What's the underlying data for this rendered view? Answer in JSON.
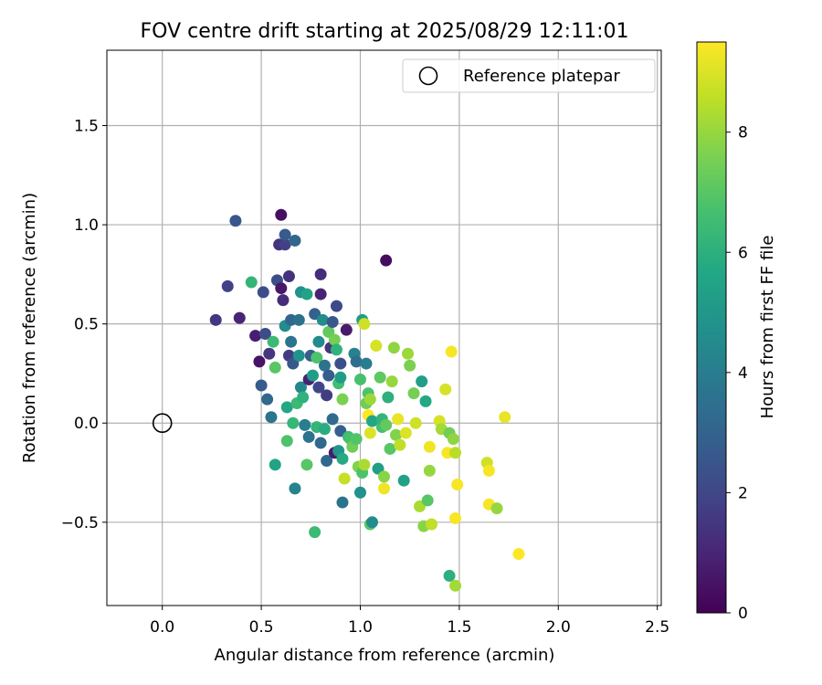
{
  "chart_data": {
    "type": "scatter",
    "title": "FOV centre drift starting at 2025/08/29 12:11:01",
    "xlabel": "Angular distance from reference (arcmin)",
    "ylabel": "Rotation from reference (arcmin)",
    "xlim": [
      -0.28,
      2.52
    ],
    "ylim": [
      -0.92,
      1.88
    ],
    "xticks": [
      0.0,
      0.5,
      1.0,
      1.5,
      2.0,
      2.5
    ],
    "xtick_labels": [
      "0.0",
      "0.5",
      "1.0",
      "1.5",
      "2.0",
      "2.5"
    ],
    "yticks": [
      -0.5,
      0.0,
      0.5,
      1.0,
      1.5
    ],
    "ytick_labels": [
      "−0.5",
      "0.0",
      "0.5",
      "1.0",
      "1.5"
    ],
    "grid": true,
    "legend": {
      "position": "top-right",
      "label": "Reference platepar"
    },
    "reference_point": {
      "x": 0.0,
      "y": 0.0
    },
    "colorbar": {
      "label": "Hours from first FF file",
      "min": 0,
      "max": 9.5,
      "ticks": [
        0,
        2,
        4,
        6,
        8
      ],
      "tick_labels": [
        "0",
        "2",
        "4",
        "6",
        "8"
      ],
      "colormap": "viridis"
    },
    "points": [
      [
        0.27,
        0.52,
        1.5
      ],
      [
        0.33,
        0.69,
        1.8
      ],
      [
        0.37,
        1.02,
        2.6
      ],
      [
        0.39,
        0.53,
        1.0
      ],
      [
        0.45,
        0.71,
        6.2
      ],
      [
        0.47,
        0.44,
        0.8
      ],
      [
        0.49,
        0.31,
        0.5
      ],
      [
        0.5,
        0.19,
        2.7
      ],
      [
        0.51,
        0.66,
        2.2
      ],
      [
        0.52,
        0.45,
        2.2
      ],
      [
        0.53,
        0.12,
        3.2
      ],
      [
        0.54,
        0.35,
        1.5
      ],
      [
        0.55,
        0.03,
        3.6
      ],
      [
        0.56,
        0.41,
        6.4
      ],
      [
        0.57,
        0.28,
        7.0
      ],
      [
        0.58,
        0.72,
        2.3
      ],
      [
        0.57,
        -0.21,
        5.5
      ],
      [
        0.59,
        0.9,
        1.4
      ],
      [
        0.6,
        1.05,
        0.4
      ],
      [
        0.6,
        0.68,
        0.6
      ],
      [
        0.61,
        0.62,
        1.2
      ],
      [
        0.62,
        0.49,
        4.6
      ],
      [
        0.62,
        0.9,
        1.8
      ],
      [
        0.62,
        0.95,
        2.7
      ],
      [
        0.63,
        0.08,
        5.6
      ],
      [
        0.63,
        -0.09,
        6.8
      ],
      [
        0.64,
        0.34,
        1.7
      ],
      [
        0.64,
        0.74,
        1.4
      ],
      [
        0.65,
        0.41,
        3.6
      ],
      [
        0.65,
        0.52,
        3.1
      ],
      [
        0.66,
        0.3,
        2.6
      ],
      [
        0.66,
        0.0,
        6.3
      ],
      [
        0.67,
        -0.33,
        4.2
      ],
      [
        0.67,
        0.92,
        3.1
      ],
      [
        0.68,
        0.1,
        6.4
      ],
      [
        0.69,
        0.34,
        4.8
      ],
      [
        0.69,
        0.52,
        3.5
      ],
      [
        0.7,
        0.18,
        4.4
      ],
      [
        0.7,
        0.66,
        4.8
      ],
      [
        0.71,
        0.13,
        6.1
      ],
      [
        0.72,
        -0.01,
        4.0
      ],
      [
        0.73,
        0.65,
        5.5
      ],
      [
        0.73,
        -0.21,
        7.0
      ],
      [
        0.74,
        0.22,
        0.9
      ],
      [
        0.74,
        -0.07,
        3.6
      ],
      [
        0.75,
        0.34,
        2.8
      ],
      [
        0.76,
        0.24,
        5.2
      ],
      [
        0.77,
        0.55,
        3.0
      ],
      [
        0.77,
        -0.55,
        6.4
      ],
      [
        0.78,
        0.33,
        6.8
      ],
      [
        0.78,
        -0.02,
        6.2
      ],
      [
        0.79,
        0.18,
        2.0
      ],
      [
        0.79,
        0.41,
        4.5
      ],
      [
        0.8,
        0.75,
        1.2
      ],
      [
        0.8,
        0.65,
        0.9
      ],
      [
        0.8,
        -0.1,
        3.2
      ],
      [
        0.81,
        0.52,
        4.6
      ],
      [
        0.82,
        0.29,
        3.6
      ],
      [
        0.82,
        -0.03,
        5.9
      ],
      [
        0.83,
        0.14,
        1.7
      ],
      [
        0.83,
        -0.19,
        3.2
      ],
      [
        0.84,
        0.24,
        2.8
      ],
      [
        0.84,
        0.46,
        7.2
      ],
      [
        0.85,
        0.38,
        1.5
      ],
      [
        0.86,
        0.51,
        2.6
      ],
      [
        0.86,
        0.02,
        3.3
      ],
      [
        0.87,
        0.42,
        7.5
      ],
      [
        0.87,
        -0.15,
        0.7
      ],
      [
        0.88,
        0.59,
        2.1
      ],
      [
        0.88,
        0.37,
        6.1
      ],
      [
        0.89,
        0.2,
        6.6
      ],
      [
        0.89,
        -0.14,
        4.9
      ],
      [
        0.9,
        0.3,
        2.3
      ],
      [
        0.9,
        0.23,
        5.2
      ],
      [
        0.9,
        -0.04,
        2.9
      ],
      [
        0.91,
        -0.4,
        3.6
      ],
      [
        0.91,
        0.12,
        7.6
      ],
      [
        0.91,
        -0.18,
        5.8
      ],
      [
        0.92,
        -0.28,
        8.7
      ],
      [
        0.93,
        0.47,
        0.7
      ],
      [
        0.94,
        -0.07,
        6.5
      ],
      [
        0.95,
        -0.08,
        6.7
      ],
      [
        0.96,
        -0.12,
        7.4
      ],
      [
        0.97,
        0.35,
        4.2
      ],
      [
        0.98,
        -0.08,
        6.9
      ],
      [
        0.98,
        0.31,
        3.4
      ],
      [
        0.99,
        -0.22,
        7.7
      ],
      [
        1.0,
        0.22,
        6.7
      ],
      [
        1.0,
        -0.35,
        4.8
      ],
      [
        1.01,
        0.52,
        5.2
      ],
      [
        1.01,
        -0.25,
        6.8
      ],
      [
        1.02,
        0.5,
        8.8
      ],
      [
        1.02,
        -0.21,
        8.3
      ],
      [
        1.03,
        0.3,
        4.0
      ],
      [
        1.03,
        0.1,
        7.4
      ],
      [
        1.04,
        0.04,
        9.5
      ],
      [
        1.04,
        0.15,
        6.8
      ],
      [
        1.05,
        0.12,
        8.1
      ],
      [
        1.05,
        -0.05,
        9.0
      ],
      [
        1.05,
        -0.51,
        7.0
      ],
      [
        1.06,
        -0.5,
        4.6
      ],
      [
        1.06,
        0.01,
        5.6
      ],
      [
        1.08,
        0.39,
        8.9
      ],
      [
        1.09,
        -0.23,
        5.3
      ],
      [
        1.1,
        0.23,
        7.1
      ],
      [
        1.11,
        -0.02,
        6.6
      ],
      [
        1.11,
        0.02,
        6.2
      ],
      [
        1.12,
        -0.27,
        7.8
      ],
      [
        1.12,
        -0.33,
        9.3
      ],
      [
        1.13,
        -0.01,
        7.2
      ],
      [
        1.13,
        0.82,
        0.3
      ],
      [
        1.14,
        0.13,
        6.0
      ],
      [
        1.15,
        -0.13,
        7.0
      ],
      [
        1.16,
        0.21,
        8.0
      ],
      [
        1.17,
        0.38,
        7.9
      ],
      [
        1.18,
        -0.06,
        7.7
      ],
      [
        1.19,
        0.02,
        9.2
      ],
      [
        1.2,
        -0.11,
        8.6
      ],
      [
        1.22,
        -0.29,
        5.4
      ],
      [
        1.23,
        -0.05,
        9.0
      ],
      [
        1.24,
        0.35,
        8.1
      ],
      [
        1.25,
        0.29,
        7.6
      ],
      [
        1.27,
        0.15,
        7.5
      ],
      [
        1.28,
        0.0,
        8.8
      ],
      [
        1.3,
        -0.42,
        8.3
      ],
      [
        1.31,
        0.21,
        5.3
      ],
      [
        1.32,
        -0.52,
        7.8
      ],
      [
        1.33,
        0.11,
        5.7
      ],
      [
        1.34,
        -0.39,
        7.0
      ],
      [
        1.35,
        -0.12,
        9.3
      ],
      [
        1.35,
        -0.24,
        8.0
      ],
      [
        1.36,
        -0.51,
        8.6
      ],
      [
        1.4,
        0.01,
        8.9
      ],
      [
        1.41,
        -0.03,
        8.2
      ],
      [
        1.43,
        0.17,
        8.9
      ],
      [
        1.44,
        -0.15,
        9.4
      ],
      [
        1.45,
        -0.77,
        6.0
      ],
      [
        1.45,
        -0.05,
        7.4
      ],
      [
        1.46,
        0.36,
        9.4
      ],
      [
        1.47,
        -0.08,
        7.9
      ],
      [
        1.48,
        -0.82,
        8.2
      ],
      [
        1.48,
        -0.15,
        8.5
      ],
      [
        1.48,
        -0.48,
        9.4
      ],
      [
        1.49,
        -0.31,
        9.4
      ],
      [
        1.64,
        -0.2,
        8.8
      ],
      [
        1.65,
        -0.24,
        9.4
      ],
      [
        1.65,
        -0.41,
        9.4
      ],
      [
        1.69,
        -0.43,
        8.0
      ],
      [
        1.73,
        0.03,
        9.2
      ],
      [
        1.8,
        -0.66,
        9.5
      ]
    ]
  }
}
